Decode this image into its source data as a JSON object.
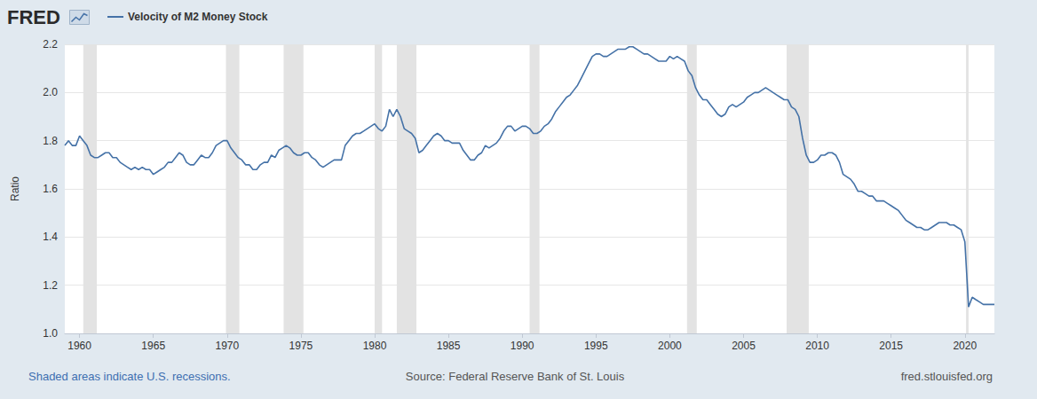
{
  "chart_data": {
    "type": "line",
    "logo": "FRED",
    "y_label": "Ratio",
    "note": "Shaded areas indicate U.S. recessions.",
    "source": "Source: Federal Reserve Bank of St. Louis",
    "url": "fred.stlouisfed.org",
    "legend": "top-left",
    "grid": true,
    "xlim": [
      1959,
      2022
    ],
    "xticks": [
      1960,
      1965,
      1970,
      1975,
      1980,
      1985,
      1990,
      1995,
      2000,
      2005,
      2010,
      2015,
      2020
    ],
    "ylim": [
      1.0,
      2.2
    ],
    "yticks": [
      {
        "value": 1.0,
        "label": "1.0"
      },
      1.2,
      1.4,
      1.6,
      1.8,
      {
        "value": 2.0,
        "label": "2.0"
      },
      2.2
    ],
    "recessions": [
      [
        1960.25,
        1961.17
      ],
      [
        1969.92,
        1970.83
      ],
      [
        1973.83,
        1975.17
      ],
      [
        1980.0,
        1980.5
      ],
      [
        1981.5,
        1982.83
      ],
      [
        1990.5,
        1991.17
      ],
      [
        2001.17,
        2001.83
      ],
      [
        2007.92,
        2009.42
      ],
      [
        2020.08,
        2020.25
      ]
    ],
    "x": [
      1959,
      1959.25,
      1959.5,
      1959.75,
      1960,
      1960.25,
      1960.5,
      1960.75,
      1961,
      1961.25,
      1961.5,
      1961.75,
      1962,
      1962.25,
      1962.5,
      1962.75,
      1963,
      1963.25,
      1963.5,
      1963.75,
      1964,
      1964.25,
      1964.5,
      1964.75,
      1965,
      1965.25,
      1965.5,
      1965.75,
      1966,
      1966.25,
      1966.5,
      1966.75,
      1967,
      1967.25,
      1967.5,
      1967.75,
      1968,
      1968.25,
      1968.5,
      1968.75,
      1969,
      1969.25,
      1969.5,
      1969.75,
      1970,
      1970.25,
      1970.5,
      1970.75,
      1971,
      1971.25,
      1971.5,
      1971.75,
      1972,
      1972.25,
      1972.5,
      1972.75,
      1973,
      1973.25,
      1973.5,
      1973.75,
      1974,
      1974.25,
      1974.5,
      1974.75,
      1975,
      1975.25,
      1975.5,
      1975.75,
      1976,
      1976.25,
      1976.5,
      1976.75,
      1977,
      1977.25,
      1977.5,
      1977.75,
      1978,
      1978.25,
      1978.5,
      1978.75,
      1979,
      1979.25,
      1979.5,
      1979.75,
      1980,
      1980.25,
      1980.5,
      1980.75,
      1981,
      1981.25,
      1981.5,
      1981.75,
      1982,
      1982.25,
      1982.5,
      1982.75,
      1983,
      1983.25,
      1983.5,
      1983.75,
      1984,
      1984.25,
      1984.5,
      1984.75,
      1985,
      1985.25,
      1985.5,
      1985.75,
      1986,
      1986.25,
      1986.5,
      1986.75,
      1987,
      1987.25,
      1987.5,
      1987.75,
      1988,
      1988.25,
      1988.5,
      1988.75,
      1989,
      1989.25,
      1989.5,
      1989.75,
      1990,
      1990.25,
      1990.5,
      1990.75,
      1991,
      1991.25,
      1991.5,
      1991.75,
      1992,
      1992.25,
      1992.5,
      1992.75,
      1993,
      1993.25,
      1993.5,
      1993.75,
      1994,
      1994.25,
      1994.5,
      1994.75,
      1995,
      1995.25,
      1995.5,
      1995.75,
      1996,
      1996.25,
      1996.5,
      1996.75,
      1997,
      1997.25,
      1997.5,
      1997.75,
      1998,
      1998.25,
      1998.5,
      1998.75,
      1999,
      1999.25,
      1999.5,
      1999.75,
      2000,
      2000.25,
      2000.5,
      2000.75,
      2001,
      2001.25,
      2001.5,
      2001.75,
      2002,
      2002.25,
      2002.5,
      2002.75,
      2003,
      2003.25,
      2003.5,
      2003.75,
      2004,
      2004.25,
      2004.5,
      2004.75,
      2005,
      2005.25,
      2005.5,
      2005.75,
      2006,
      2006.25,
      2006.5,
      2006.75,
      2007,
      2007.25,
      2007.5,
      2007.75,
      2008,
      2008.25,
      2008.5,
      2008.75,
      2009,
      2009.25,
      2009.5,
      2009.75,
      2010,
      2010.25,
      2010.5,
      2010.75,
      2011,
      2011.25,
      2011.5,
      2011.75,
      2012,
      2012.25,
      2012.5,
      2012.75,
      2013,
      2013.25,
      2013.5,
      2013.75,
      2014,
      2014.25,
      2014.5,
      2014.75,
      2015,
      2015.25,
      2015.5,
      2015.75,
      2016,
      2016.25,
      2016.5,
      2016.75,
      2017,
      2017.25,
      2017.5,
      2017.75,
      2018,
      2018.25,
      2018.5,
      2018.75,
      2019,
      2019.25,
      2019.5,
      2019.75,
      2020,
      2020.25,
      2020.5,
      2020.75,
      2021,
      2021.25,
      2021.5,
      2021.75,
      2022
    ],
    "series": [
      {
        "name": "Velocity of M2 Money Stock",
        "color": "#4572a7",
        "values": [
          1.78,
          1.8,
          1.78,
          1.78,
          1.82,
          1.8,
          1.78,
          1.74,
          1.73,
          1.73,
          1.74,
          1.75,
          1.75,
          1.73,
          1.73,
          1.71,
          1.7,
          1.69,
          1.68,
          1.69,
          1.68,
          1.69,
          1.68,
          1.68,
          1.66,
          1.67,
          1.68,
          1.69,
          1.71,
          1.71,
          1.73,
          1.75,
          1.74,
          1.71,
          1.7,
          1.7,
          1.72,
          1.74,
          1.73,
          1.73,
          1.75,
          1.78,
          1.79,
          1.8,
          1.8,
          1.77,
          1.75,
          1.73,
          1.72,
          1.7,
          1.7,
          1.68,
          1.68,
          1.7,
          1.71,
          1.71,
          1.74,
          1.73,
          1.76,
          1.77,
          1.78,
          1.77,
          1.75,
          1.74,
          1.74,
          1.75,
          1.75,
          1.73,
          1.72,
          1.7,
          1.69,
          1.7,
          1.71,
          1.72,
          1.72,
          1.72,
          1.78,
          1.8,
          1.82,
          1.83,
          1.83,
          1.84,
          1.85,
          1.86,
          1.87,
          1.85,
          1.84,
          1.86,
          1.93,
          1.9,
          1.93,
          1.9,
          1.85,
          1.84,
          1.83,
          1.81,
          1.75,
          1.76,
          1.78,
          1.8,
          1.82,
          1.83,
          1.82,
          1.8,
          1.8,
          1.79,
          1.79,
          1.79,
          1.76,
          1.74,
          1.72,
          1.72,
          1.74,
          1.75,
          1.78,
          1.77,
          1.78,
          1.79,
          1.81,
          1.84,
          1.86,
          1.86,
          1.84,
          1.85,
          1.86,
          1.86,
          1.85,
          1.83,
          1.83,
          1.84,
          1.86,
          1.87,
          1.89,
          1.92,
          1.94,
          1.96,
          1.98,
          1.99,
          2.01,
          2.03,
          2.06,
          2.09,
          2.12,
          2.15,
          2.16,
          2.16,
          2.15,
          2.15,
          2.16,
          2.17,
          2.18,
          2.18,
          2.18,
          2.19,
          2.19,
          2.18,
          2.17,
          2.16,
          2.16,
          2.15,
          2.14,
          2.13,
          2.13,
          2.13,
          2.15,
          2.14,
          2.15,
          2.14,
          2.13,
          2.09,
          2.07,
          2.02,
          1.99,
          1.97,
          1.97,
          1.95,
          1.93,
          1.91,
          1.9,
          1.91,
          1.94,
          1.95,
          1.94,
          1.95,
          1.96,
          1.98,
          1.99,
          2.0,
          2.0,
          2.01,
          2.02,
          2.01,
          2.0,
          1.99,
          1.98,
          1.97,
          1.97,
          1.94,
          1.93,
          1.9,
          1.81,
          1.74,
          1.71,
          1.71,
          1.72,
          1.74,
          1.74,
          1.75,
          1.75,
          1.74,
          1.71,
          1.66,
          1.65,
          1.64,
          1.62,
          1.59,
          1.59,
          1.58,
          1.57,
          1.57,
          1.55,
          1.55,
          1.55,
          1.54,
          1.53,
          1.52,
          1.51,
          1.49,
          1.47,
          1.46,
          1.45,
          1.44,
          1.44,
          1.43,
          1.43,
          1.44,
          1.45,
          1.46,
          1.46,
          1.46,
          1.45,
          1.45,
          1.44,
          1.43,
          1.38,
          1.11,
          1.15,
          1.14,
          1.13,
          1.12,
          1.12,
          1.12,
          1.12
        ]
      }
    ]
  }
}
